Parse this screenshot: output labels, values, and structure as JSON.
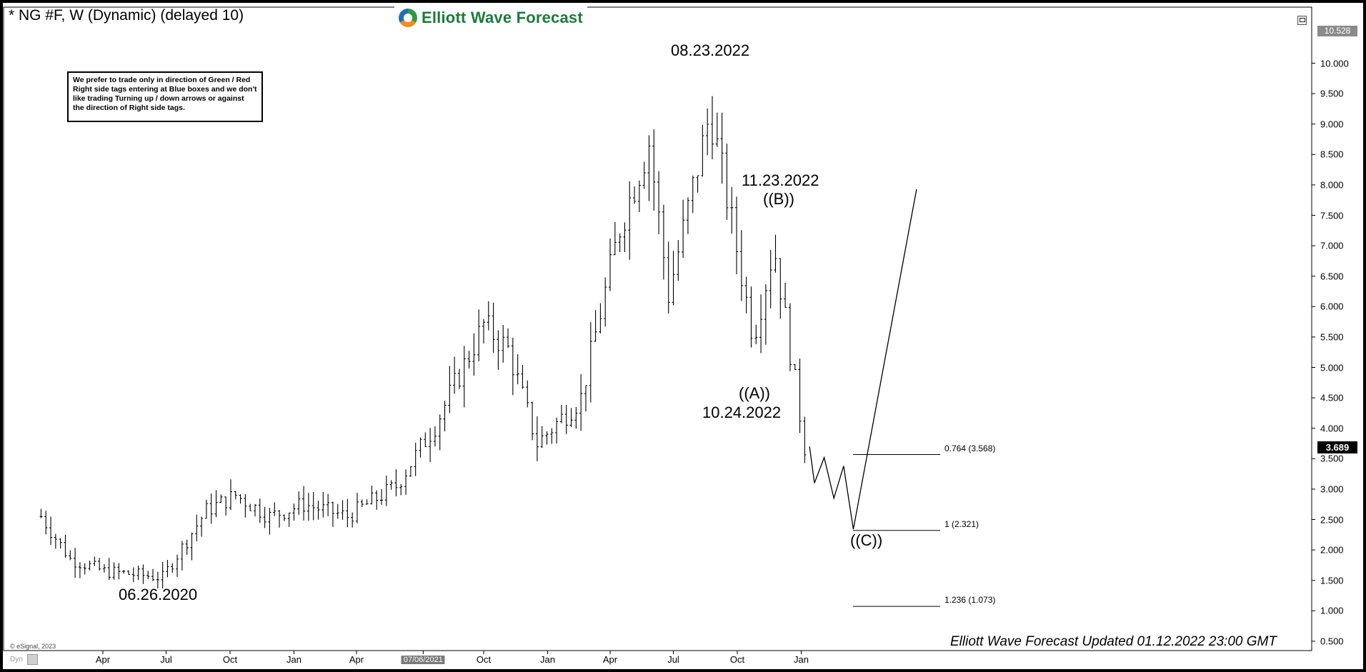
{
  "title": "* NG #F, W (Dynamic) (delayed 10)",
  "brand": "Elliott Wave Forecast",
  "note": [
    "We prefer to trade only in direction of Green / Red",
    "Right side tags entering at Blue boxes and we don't",
    "like trading Turning up / down arrows or against",
    "the direction of Right side tags."
  ],
  "annotations": {
    "low_2020": "06.26.2020",
    "peak_2022": "08.23.2022",
    "wave_b_date": "11.23.2022",
    "wave_b": "((B))",
    "wave_a": "((A))",
    "wave_a_date": "10.24.2022",
    "wave_c": "((C))"
  },
  "footer": "Elliott Wave Forecast Updated 01.12.2022 23:00 GMT",
  "copyright": "© eSignal, 2023",
  "dyn_label": "Dyn",
  "price_current": "3.689",
  "price_max": "10.528",
  "x_highlight": "07/06/2021",
  "colors": {
    "bars": "#000000",
    "background": "#ffffff",
    "frame": "#000000"
  },
  "chart_data": {
    "type": "ohlc",
    "ylim": [
      0.5,
      10.528
    ],
    "y_ticks": [
      "0.500",
      "1.000",
      "1.500",
      "2.000",
      "2.500",
      "3.000",
      "3.500",
      "4.000",
      "4.500",
      "5.000",
      "5.500",
      "6.000",
      "6.500",
      "7.000",
      "7.500",
      "8.000",
      "8.500",
      "9.000",
      "9.500",
      "10.000"
    ],
    "x_tick_labels": [
      "Apr",
      "Jul",
      "Oct",
      "Jan",
      "Apr",
      "07/06/2021",
      "Oct",
      "Jan",
      "Apr",
      "Jul",
      "Oct",
      "Jan"
    ],
    "anchors": [
      {
        "date": "2020-01-03",
        "close": 2.55
      },
      {
        "date": "2020-02-14",
        "close": 1.85
      },
      {
        "date": "2020-04-03",
        "close": 1.65
      },
      {
        "date": "2020-06-26",
        "close": 1.55
      },
      {
        "date": "2020-08-28",
        "close": 2.65
      },
      {
        "date": "2020-10-09",
        "close": 2.9
      },
      {
        "date": "2020-11-27",
        "close": 2.55
      },
      {
        "date": "2021-01-15",
        "close": 2.75
      },
      {
        "date": "2021-03-19",
        "close": 2.55
      },
      {
        "date": "2021-05-28",
        "close": 3.05
      },
      {
        "date": "2021-07-23",
        "close": 4.05
      },
      {
        "date": "2021-10-01",
        "close": 5.7
      },
      {
        "date": "2021-11-05",
        "close": 5.3
      },
      {
        "date": "2021-12-17",
        "close": 3.75
      },
      {
        "date": "2022-02-18",
        "close": 4.5
      },
      {
        "date": "2022-04-15",
        "close": 7.3
      },
      {
        "date": "2022-05-27",
        "close": 8.7
      },
      {
        "date": "2022-06-24",
        "close": 6.2
      },
      {
        "date": "2022-08-23",
        "close": 9.2
      },
      {
        "date": "2022-09-16",
        "close": 7.8
      },
      {
        "date": "2022-10-24",
        "close": 5.5
      },
      {
        "date": "2022-11-23",
        "close": 7.0
      },
      {
        "date": "2023-01-06",
        "close": 3.7
      }
    ],
    "projection": [
      {
        "date": "2023-01-13",
        "value": 3.7
      },
      {
        "date": "2023-01-20",
        "value": 3.1
      },
      {
        "date": "2023-02-03",
        "value": 3.52
      },
      {
        "date": "2023-02-17",
        "value": 2.85
      },
      {
        "date": "2023-03-03",
        "value": 3.38
      },
      {
        "date": "2023-03-17",
        "value": 2.34
      },
      {
        "date": "2023-06-16",
        "value": 7.93
      }
    ],
    "fib_levels": [
      {
        "ratio": "0.764",
        "value": 3.568,
        "label": "0.764 (3.568)"
      },
      {
        "ratio": "1",
        "value": 2.321,
        "label": "1 (2.321)"
      },
      {
        "ratio": "1.236",
        "value": 1.073,
        "label": "1.236 (1.073)"
      }
    ]
  }
}
